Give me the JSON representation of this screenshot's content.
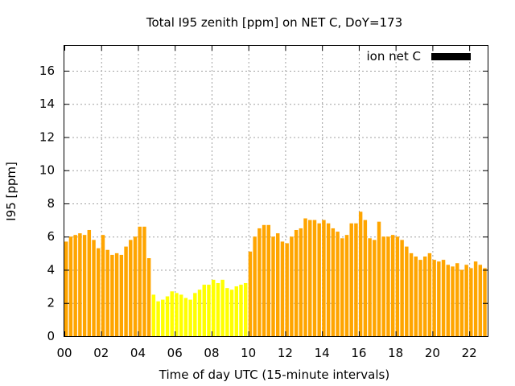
{
  "chart_data": {
    "type": "bar",
    "title": "Total I95 zenith [ppm] on NET C, DoY=173",
    "xlabel": "Time of day UTC (15-minute intervals)",
    "ylabel": "I95 [ppm]",
    "xlim": [
      0,
      23
    ],
    "ylim": [
      0,
      17.5
    ],
    "xticks": [
      "00",
      "02",
      "04",
      "06",
      "08",
      "10",
      "12",
      "14",
      "16",
      "18",
      "20",
      "22"
    ],
    "yticks": [
      "0",
      "2",
      "4",
      "6",
      "8",
      "10",
      "12",
      "14",
      "16"
    ],
    "grid": true,
    "legend_position": "top-right",
    "interval_hours": 0.25,
    "series": [
      {
        "name": "ion net C",
        "legend_color": "#000000",
        "values": [
          5.7,
          6.0,
          6.1,
          6.2,
          6.1,
          6.4,
          5.8,
          5.3,
          6.1,
          5.2,
          4.9,
          5.0,
          4.9,
          5.4,
          5.8,
          6.0,
          6.6,
          6.6,
          4.7,
          2.5,
          2.1,
          2.2,
          2.4,
          2.7,
          2.6,
          2.5,
          2.3,
          2.2,
          2.6,
          2.8,
          3.1,
          3.1,
          3.4,
          3.2,
          3.4,
          2.9,
          2.8,
          3.0,
          3.1,
          3.2,
          5.1,
          6.0,
          6.5,
          6.7,
          6.7,
          6.0,
          6.2,
          5.7,
          5.6,
          6.0,
          6.4,
          6.5,
          7.1,
          7.0,
          7.0,
          6.8,
          7.0,
          6.8,
          6.5,
          6.3,
          5.9,
          6.1,
          6.8,
          6.8,
          7.5,
          7.0,
          5.9,
          5.8,
          6.9,
          6.0,
          6.0,
          6.1,
          6.0,
          5.8,
          5.4,
          5.0,
          4.8,
          4.6,
          4.8,
          5.0,
          4.6,
          4.5,
          4.6,
          4.3,
          4.2,
          4.4,
          4.0,
          4.3,
          4.1,
          4.5,
          4.3,
          4.1
        ]
      }
    ],
    "bar_colors": {
      "high": "#ffa500",
      "low": "#ffff00",
      "low_range_start_index": 19,
      "low_range_end_index": 39
    }
  }
}
